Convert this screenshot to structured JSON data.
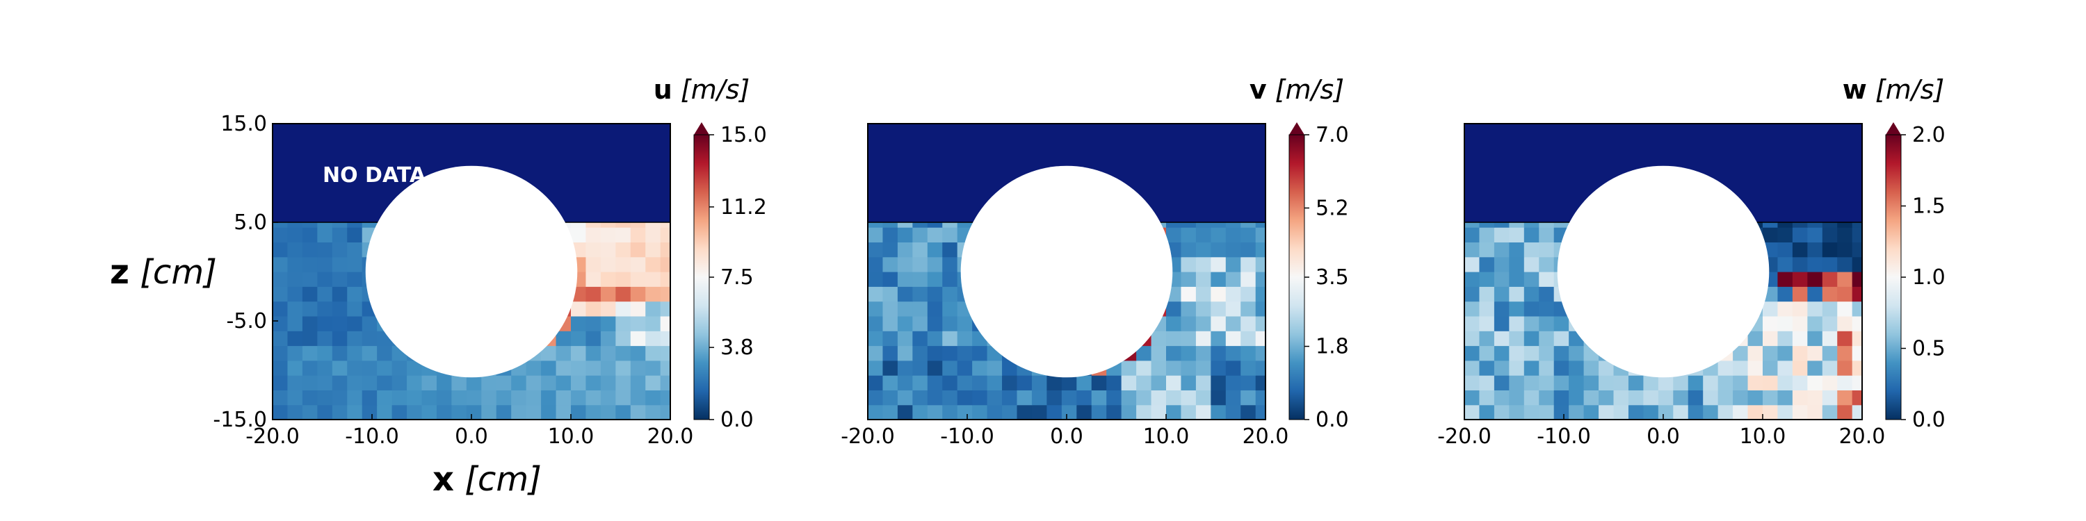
{
  "chart_data": [
    {
      "type": "heatmap",
      "variable": "u",
      "unit": "m/s",
      "colorbar_label": "u [m/s]",
      "colorbar_ticks": [
        "0.0",
        "3.8",
        "7.5",
        "11.2",
        "15.0"
      ],
      "vmin": 0.0,
      "vmax": 15.0,
      "colormap": "RdBu_r",
      "xlim": [
        -20.0,
        20.0
      ],
      "ylim": [
        -15.0,
        15.0
      ],
      "xticks": [
        "-20.0",
        "-10.0",
        "0.0",
        "10.0",
        "20.0"
      ],
      "yticks": [
        "-15.0",
        "-5.0",
        "5.0",
        "15.0"
      ],
      "xlabel": "x [cm]",
      "ylabel": "z [cm]",
      "no_data_region": {
        "z_range": [
          5.0,
          15.0
        ],
        "color": "#0b1a77"
      },
      "obstacle": {
        "shape": "circle",
        "center": [
          0.0,
          0.0
        ],
        "radius": 7.5,
        "color": "#ffffff"
      },
      "annotation": "NO DATA",
      "grid": {
        "cell_size_cm": 1.5
      },
      "field_description": "low velocity (~1-3 m/s) left of and below the cylinder; high velocity (~7-9 m/s) wake to the right above z=-2; mixing layer near 12-14 m/s at 8<x<12, -5<z<-1"
    },
    {
      "type": "heatmap",
      "variable": "v",
      "unit": "m/s",
      "colorbar_label": "v [m/s]",
      "colorbar_ticks": [
        "0.0",
        "1.8",
        "3.5",
        "5.2",
        "7.0"
      ],
      "vmin": 0.0,
      "vmax": 7.0,
      "colormap": "RdBu_r",
      "xlim": [
        -20.0,
        20.0
      ],
      "ylim": [
        -15.0,
        15.0
      ],
      "xticks": [
        "-20.0",
        "-10.0",
        "0.0",
        "10.0",
        "20.0"
      ],
      "no_data_region": {
        "z_range": [
          5.0,
          15.0
        ],
        "color": "#0b1a77"
      },
      "obstacle": {
        "shape": "circle",
        "center": [
          0.0,
          0.0
        ],
        "radius": 7.5,
        "color": "#ffffff"
      },
      "grid": {
        "cell_size_cm": 1.5
      },
      "field_description": "mostly 0.5-2 m/s; peaks ~6-7 m/s at the upper-left shoulder of the cylinder and along its lower-right edge; 2-3 m/s patches to the right"
    },
    {
      "type": "heatmap",
      "variable": "w",
      "unit": "m/s",
      "colorbar_label": "w [m/s]",
      "colorbar_ticks": [
        "0.0",
        "0.5",
        "1.0",
        "1.5",
        "2.0"
      ],
      "vmin": 0.0,
      "vmax": 2.0,
      "colormap": "RdBu_r",
      "xlim": [
        -20.0,
        20.0
      ],
      "ylim": [
        -15.0,
        15.0
      ],
      "xticks": [
        "-20.0",
        "-10.0",
        "0.0",
        "10.0",
        "20.0"
      ],
      "no_data_region": {
        "z_range": [
          5.0,
          15.0
        ],
        "color": "#0b1a77"
      },
      "obstacle": {
        "shape": "circle",
        "center": [
          0.0,
          0.0
        ],
        "radius": 7.5,
        "color": "#ffffff"
      },
      "grid": {
        "cell_size_cm": 1.5
      },
      "field_description": "mostly 0.2-0.7 m/s; dark band near 0.05 m/s for x>8, -1<z<5; isolated ~1.7-2 m/s cells along z~-1.5 for x>11 and near (-7, 4.5)"
    }
  ]
}
